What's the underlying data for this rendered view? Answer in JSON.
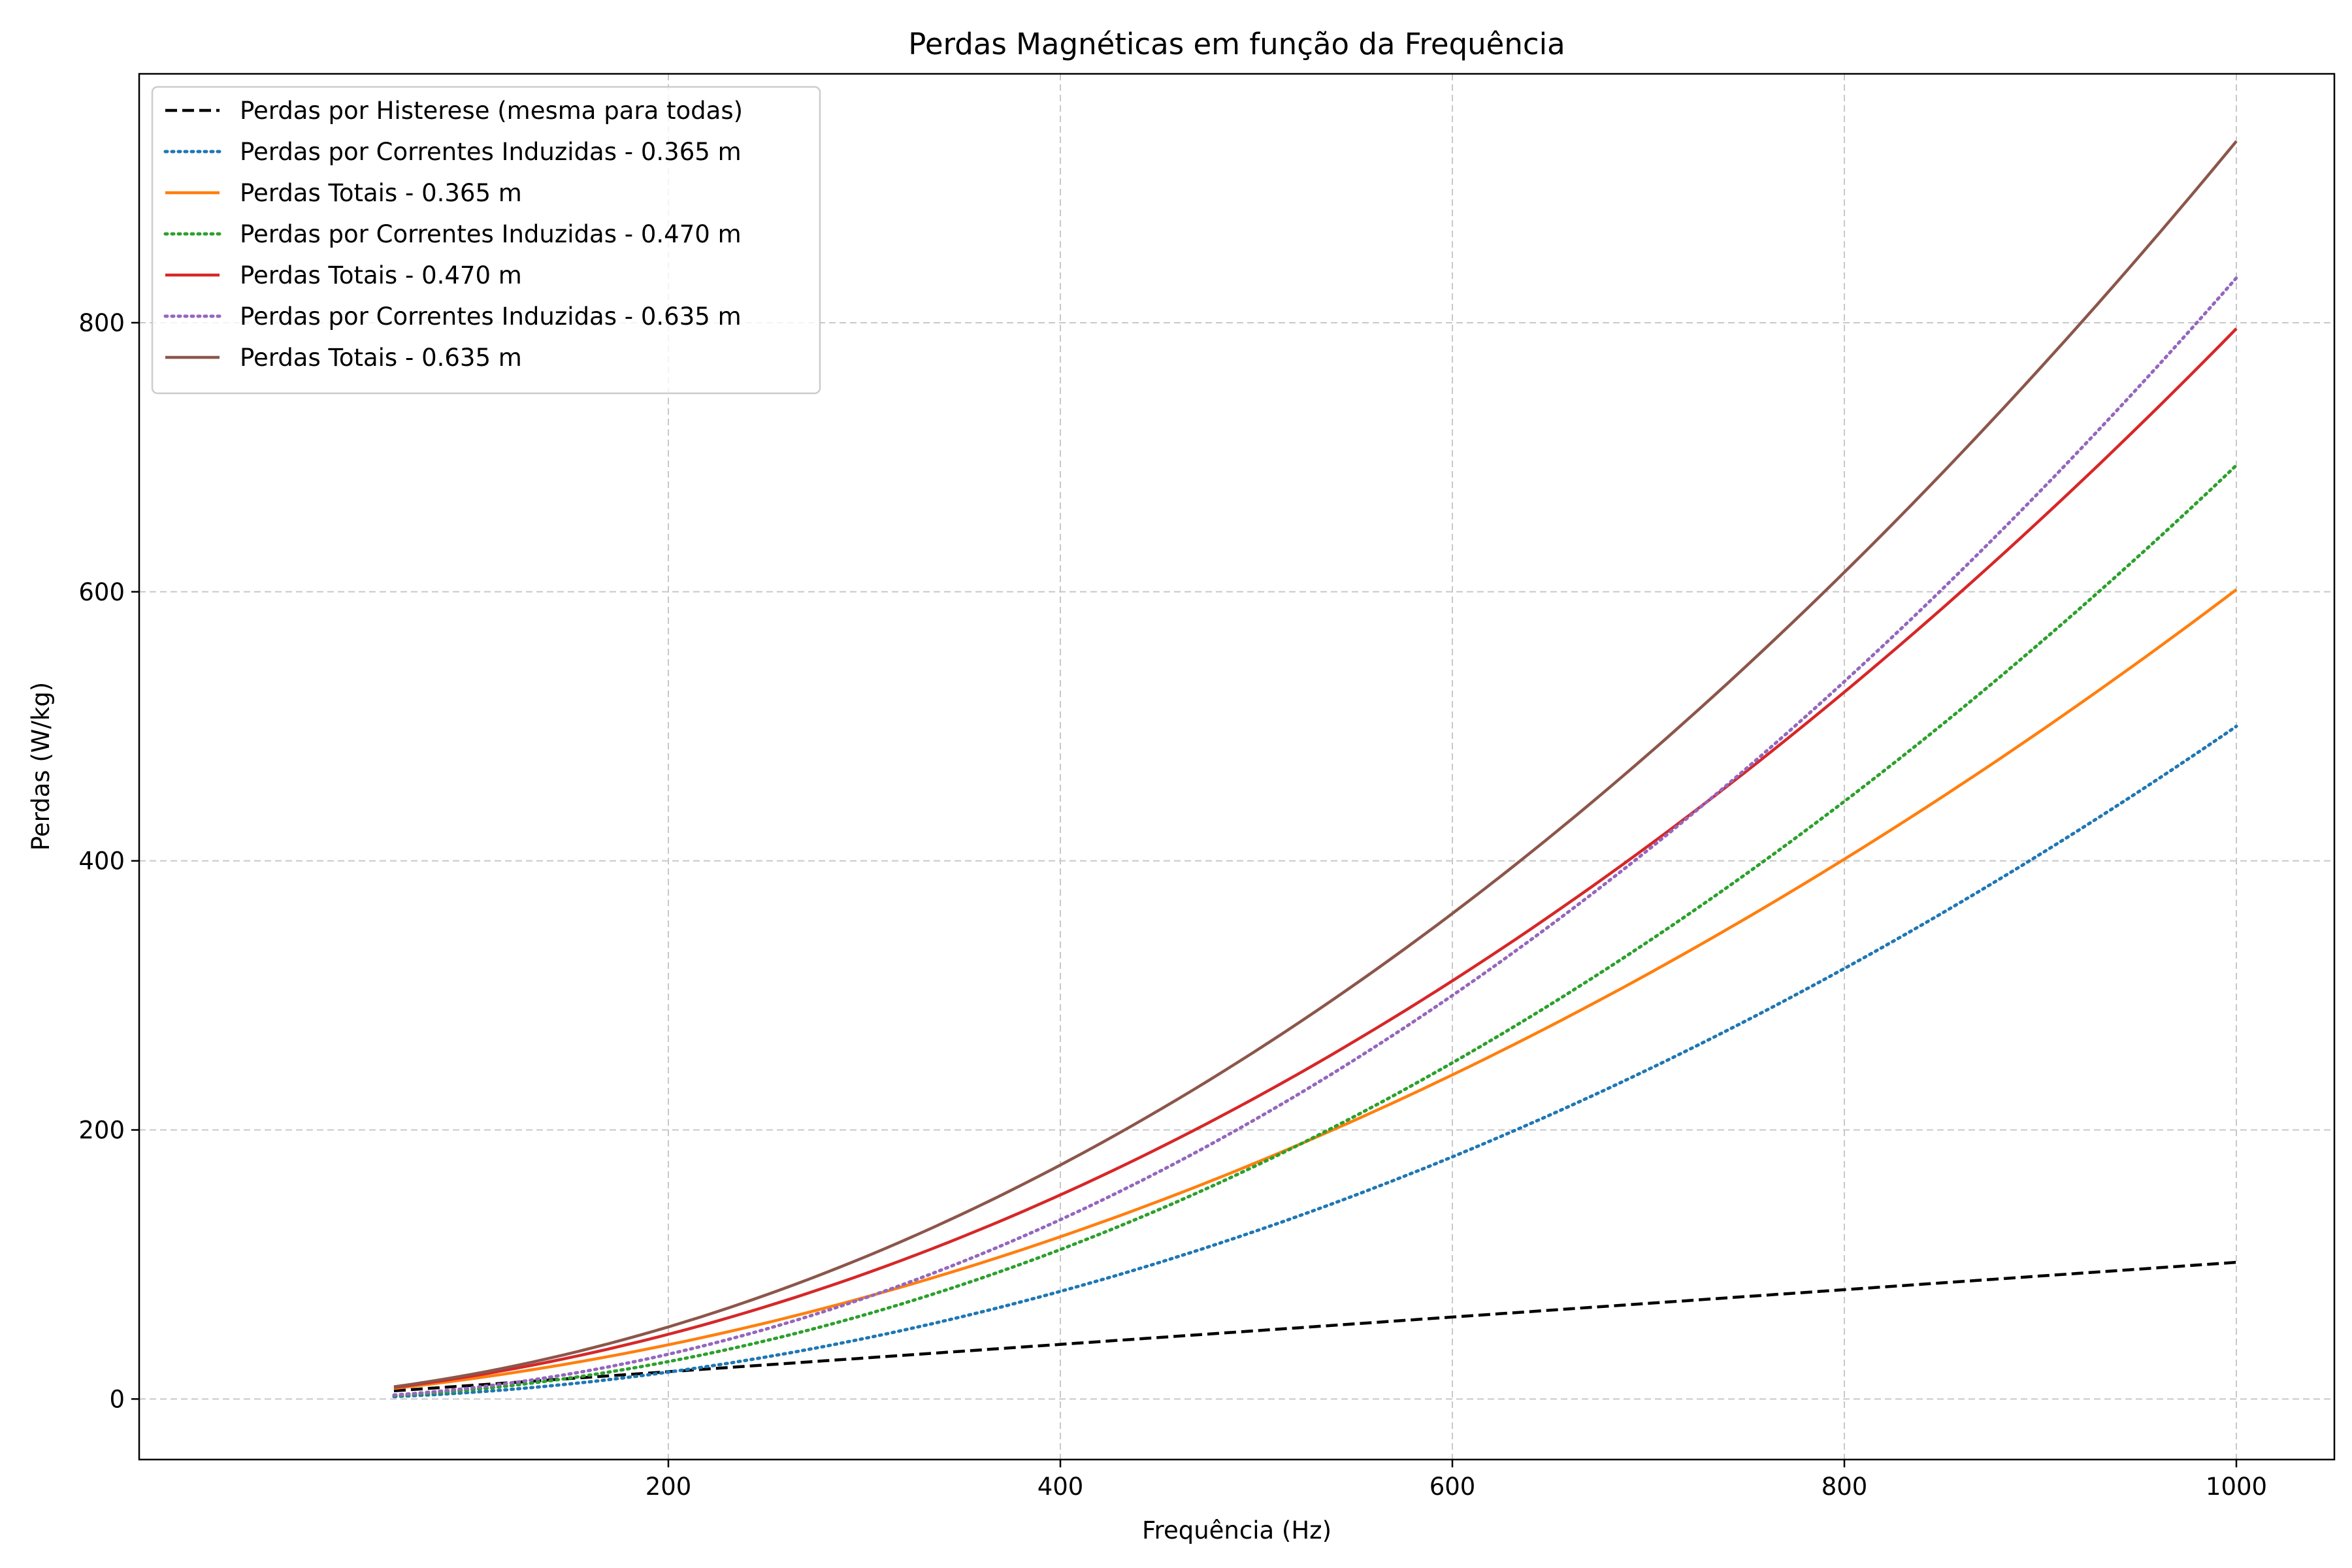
{
  "chart_data": {
    "type": "line",
    "title": "Perdas Magnéticas em função da Frequência",
    "xlabel": "Frequência (Hz)",
    "ylabel": "Perdas (W/kg)",
    "xlim": [
      -70,
      1050
    ],
    "ylim": [
      -45,
      985
    ],
    "xticks": [
      200,
      400,
      600,
      800,
      1000
    ],
    "yticks": [
      0,
      200,
      400,
      600,
      800
    ],
    "grid": true,
    "legend_position": "top-left",
    "x_range": [
      60,
      1000
    ],
    "series": [
      {
        "name": "Perdas por Histerese (mesma para todas)",
        "color": "#000000",
        "style": "dashed",
        "x": [
          60,
          200,
          400,
          600,
          800,
          1000
        ],
        "y": [
          6.1,
          20.3,
          40.6,
          61,
          81.3,
          101.6
        ]
      },
      {
        "name": "Perdas por Correntes Induzidas - 0.365 m",
        "color": "#1f77b4",
        "style": "dotted",
        "x": [
          60,
          200,
          400,
          600,
          800,
          1000
        ],
        "y": [
          1.8,
          20,
          80,
          180,
          320,
          500
        ]
      },
      {
        "name": "Perdas Totais - 0.365 m",
        "color": "#ff7f0e",
        "style": "solid",
        "x": [
          60,
          200,
          400,
          600,
          800,
          1000
        ],
        "y": [
          7.9,
          40.3,
          120.6,
          241,
          401.3,
          601.6
        ]
      },
      {
        "name": "Perdas por Correntes Induzidas - 0.470 m",
        "color": "#2ca02c",
        "style": "dotted",
        "x": [
          60,
          200,
          400,
          600,
          800,
          1000
        ],
        "y": [
          2.5,
          27.8,
          111,
          250,
          444,
          694
        ]
      },
      {
        "name": "Perdas Totais - 0.470 m",
        "color": "#d62728",
        "style": "solid",
        "x": [
          60,
          200,
          400,
          600,
          800,
          1000
        ],
        "y": [
          8.6,
          48.1,
          151.6,
          311,
          525.3,
          795.6
        ]
      },
      {
        "name": "Perdas por Correntes Induzidas - 0.635 m",
        "color": "#9467bd",
        "style": "dotted",
        "x": [
          60,
          200,
          400,
          600,
          800,
          1000
        ],
        "y": [
          3,
          33.3,
          133.3,
          300,
          533.3,
          833.3
        ]
      },
      {
        "name": "Perdas Totais - 0.635 m",
        "color": "#8c564b",
        "style": "solid",
        "x": [
          60,
          200,
          400,
          600,
          800,
          1000
        ],
        "y": [
          9.1,
          53.6,
          173.9,
          361,
          614.6,
          934.9
        ]
      }
    ]
  }
}
